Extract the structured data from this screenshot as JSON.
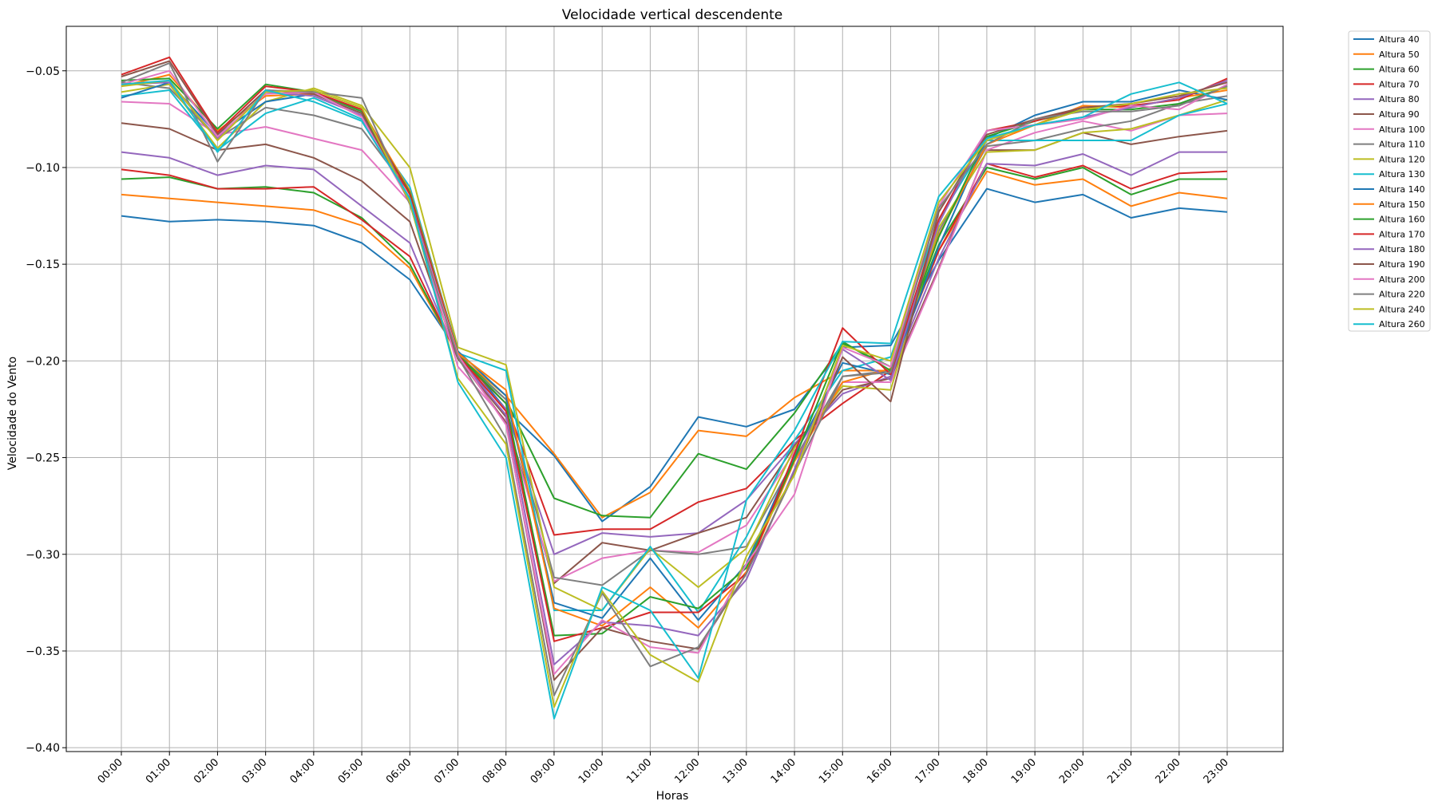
{
  "chart_data": {
    "type": "line",
    "title": "Velocidade vertical descendente",
    "xlabel": "Horas",
    "ylabel": "Velocidade do Vento",
    "ylim": [
      -0.402,
      -0.027
    ],
    "yticks": [
      -0.05,
      -0.1,
      -0.15,
      -0.2,
      -0.25,
      -0.3,
      -0.35,
      -0.4
    ],
    "ytick_labels": [
      "−0.05",
      "−0.10",
      "−0.15",
      "−0.20",
      "−0.25",
      "−0.30",
      "−0.35",
      "−0.40"
    ],
    "grid": true,
    "legend_position": "outside-top-right",
    "x": [
      "00:00",
      "01:00",
      "02:00",
      "03:00",
      "04:00",
      "05:00",
      "06:00",
      "07:00",
      "08:00",
      "09:00",
      "10:00",
      "11:00",
      "12:00",
      "13:00",
      "14:00",
      "15:00",
      "16:00",
      "17:00",
      "18:00",
      "19:00",
      "20:00",
      "21:00",
      "22:00",
      "23:00"
    ],
    "series": [
      {
        "name": "Altura 40",
        "color": "#1f77b4",
        "values": [
          -0.125,
          -0.128,
          -0.127,
          -0.128,
          -0.13,
          -0.139,
          -0.158,
          -0.195,
          -0.225,
          -0.249,
          -0.283,
          -0.265,
          -0.229,
          -0.234,
          -0.225,
          -0.193,
          -0.192,
          -0.148,
          -0.111,
          -0.118,
          -0.114,
          -0.126,
          -0.121,
          -0.123
        ]
      },
      {
        "name": "Altura 50",
        "color": "#ff7f0e",
        "values": [
          -0.114,
          -0.116,
          -0.118,
          -0.12,
          -0.122,
          -0.13,
          -0.152,
          -0.197,
          -0.218,
          -0.248,
          -0.281,
          -0.268,
          -0.236,
          -0.239,
          -0.219,
          -0.205,
          -0.205,
          -0.143,
          -0.102,
          -0.109,
          -0.106,
          -0.12,
          -0.113,
          -0.116
        ]
      },
      {
        "name": "Altura 60",
        "color": "#2ca02c",
        "values": [
          -0.106,
          -0.105,
          -0.111,
          -0.11,
          -0.113,
          -0.126,
          -0.15,
          -0.197,
          -0.22,
          -0.271,
          -0.28,
          -0.281,
          -0.248,
          -0.256,
          -0.227,
          -0.191,
          -0.203,
          -0.14,
          -0.1,
          -0.106,
          -0.1,
          -0.114,
          -0.106,
          -0.106
        ]
      },
      {
        "name": "Altura 70",
        "color": "#d62728",
        "values": [
          -0.101,
          -0.104,
          -0.111,
          -0.111,
          -0.11,
          -0.127,
          -0.146,
          -0.198,
          -0.222,
          -0.29,
          -0.287,
          -0.287,
          -0.273,
          -0.266,
          -0.241,
          -0.222,
          -0.205,
          -0.143,
          -0.098,
          -0.105,
          -0.099,
          -0.111,
          -0.103,
          -0.102
        ]
      },
      {
        "name": "Altura 80",
        "color": "#9467bd",
        "values": [
          -0.092,
          -0.095,
          -0.104,
          -0.099,
          -0.101,
          -0.12,
          -0.139,
          -0.199,
          -0.225,
          -0.3,
          -0.289,
          -0.291,
          -0.289,
          -0.272,
          -0.243,
          -0.217,
          -0.208,
          -0.147,
          -0.098,
          -0.099,
          -0.093,
          -0.104,
          -0.092,
          -0.092
        ]
      },
      {
        "name": "Altura 90",
        "color": "#8c564b",
        "values": [
          -0.077,
          -0.08,
          -0.091,
          -0.088,
          -0.095,
          -0.107,
          -0.128,
          -0.199,
          -0.229,
          -0.315,
          -0.294,
          -0.298,
          -0.289,
          -0.281,
          -0.244,
          -0.215,
          -0.209,
          -0.152,
          -0.091,
          -0.091,
          -0.082,
          -0.088,
          -0.084,
          -0.081
        ]
      },
      {
        "name": "Altura 100",
        "color": "#e377c2",
        "values": [
          -0.066,
          -0.067,
          -0.083,
          -0.079,
          -0.085,
          -0.091,
          -0.118,
          -0.203,
          -0.231,
          -0.314,
          -0.302,
          -0.298,
          -0.299,
          -0.285,
          -0.247,
          -0.211,
          -0.211,
          -0.153,
          -0.091,
          -0.082,
          -0.076,
          -0.081,
          -0.073,
          -0.072
        ]
      },
      {
        "name": "Altura 110",
        "color": "#7f7f7f",
        "values": [
          -0.056,
          -0.059,
          -0.085,
          -0.069,
          -0.073,
          -0.08,
          -0.113,
          -0.198,
          -0.22,
          -0.312,
          -0.316,
          -0.298,
          -0.3,
          -0.296,
          -0.251,
          -0.208,
          -0.205,
          -0.133,
          -0.089,
          -0.086,
          -0.08,
          -0.076,
          -0.067,
          -0.063
        ]
      },
      {
        "name": "Altura 120",
        "color": "#bcbd22",
        "values": [
          -0.061,
          -0.057,
          -0.09,
          -0.066,
          -0.059,
          -0.068,
          -0.1,
          -0.193,
          -0.202,
          -0.317,
          -0.329,
          -0.297,
          -0.317,
          -0.297,
          -0.245,
          -0.213,
          -0.215,
          -0.131,
          -0.092,
          -0.091,
          -0.082,
          -0.08,
          -0.073,
          -0.065
        ]
      },
      {
        "name": "Altura 130",
        "color": "#17becf",
        "values": [
          -0.063,
          -0.06,
          -0.091,
          -0.072,
          -0.064,
          -0.075,
          -0.11,
          -0.196,
          -0.205,
          -0.329,
          -0.329,
          -0.296,
          -0.33,
          -0.291,
          -0.241,
          -0.205,
          -0.198,
          -0.127,
          -0.086,
          -0.086,
          -0.086,
          -0.086,
          -0.073,
          -0.067
        ]
      },
      {
        "name": "Altura 140",
        "color": "#1f77b4",
        "values": [
          -0.064,
          -0.056,
          -0.083,
          -0.066,
          -0.062,
          -0.072,
          -0.112,
          -0.195,
          -0.218,
          -0.325,
          -0.333,
          -0.302,
          -0.334,
          -0.305,
          -0.249,
          -0.201,
          -0.207,
          -0.141,
          -0.085,
          -0.073,
          -0.066,
          -0.066,
          -0.06,
          -0.065
        ]
      },
      {
        "name": "Altura 150",
        "color": "#ff7f0e",
        "values": [
          -0.058,
          -0.052,
          -0.081,
          -0.063,
          -0.062,
          -0.07,
          -0.112,
          -0.196,
          -0.215,
          -0.328,
          -0.337,
          -0.317,
          -0.338,
          -0.309,
          -0.252,
          -0.211,
          -0.204,
          -0.135,
          -0.088,
          -0.078,
          -0.068,
          -0.069,
          -0.064,
          -0.06
        ]
      },
      {
        "name": "Altura 160",
        "color": "#2ca02c",
        "values": [
          -0.055,
          -0.054,
          -0.08,
          -0.057,
          -0.061,
          -0.071,
          -0.113,
          -0.197,
          -0.222,
          -0.342,
          -0.341,
          -0.322,
          -0.328,
          -0.307,
          -0.251,
          -0.19,
          -0.205,
          -0.136,
          -0.084,
          -0.076,
          -0.07,
          -0.07,
          -0.067,
          -0.058
        ]
      },
      {
        "name": "Altura 170",
        "color": "#d62728",
        "values": [
          -0.052,
          -0.043,
          -0.082,
          -0.058,
          -0.061,
          -0.07,
          -0.114,
          -0.197,
          -0.226,
          -0.345,
          -0.338,
          -0.33,
          -0.33,
          -0.31,
          -0.248,
          -0.183,
          -0.207,
          -0.127,
          -0.081,
          -0.076,
          -0.069,
          -0.068,
          -0.065,
          -0.054
        ]
      },
      {
        "name": "Altura 180",
        "color": "#9467bd",
        "values": [
          -0.057,
          -0.056,
          -0.085,
          -0.061,
          -0.063,
          -0.073,
          -0.116,
          -0.198,
          -0.228,
          -0.357,
          -0.335,
          -0.337,
          -0.342,
          -0.313,
          -0.256,
          -0.194,
          -0.21,
          -0.129,
          -0.081,
          -0.078,
          -0.074,
          -0.069,
          -0.064,
          -0.055
        ]
      },
      {
        "name": "Altura 190",
        "color": "#8c564b",
        "values": [
          -0.053,
          -0.045,
          -0.083,
          -0.06,
          -0.062,
          -0.072,
          -0.117,
          -0.198,
          -0.232,
          -0.365,
          -0.338,
          -0.345,
          -0.349,
          -0.31,
          -0.258,
          -0.198,
          -0.221,
          -0.123,
          -0.083,
          -0.075,
          -0.069,
          -0.067,
          -0.063,
          -0.056
        ]
      },
      {
        "name": "Altura 200",
        "color": "#e377c2",
        "values": [
          -0.057,
          -0.05,
          -0.084,
          -0.062,
          -0.061,
          -0.074,
          -0.118,
          -0.197,
          -0.233,
          -0.362,
          -0.334,
          -0.348,
          -0.351,
          -0.305,
          -0.269,
          -0.193,
          -0.203,
          -0.12,
          -0.081,
          -0.078,
          -0.075,
          -0.068,
          -0.07,
          -0.057
        ]
      },
      {
        "name": "Altura 220",
        "color": "#7f7f7f",
        "values": [
          -0.056,
          -0.046,
          -0.097,
          -0.06,
          -0.061,
          -0.064,
          -0.119,
          -0.198,
          -0.24,
          -0.373,
          -0.32,
          -0.358,
          -0.348,
          -0.31,
          -0.258,
          -0.208,
          -0.206,
          -0.121,
          -0.088,
          -0.075,
          -0.071,
          -0.071,
          -0.068,
          -0.058
        ]
      },
      {
        "name": "Altura 240",
        "color": "#bcbd22",
        "values": [
          -0.058,
          -0.055,
          -0.086,
          -0.061,
          -0.06,
          -0.069,
          -0.118,
          -0.209,
          -0.243,
          -0.379,
          -0.319,
          -0.352,
          -0.366,
          -0.301,
          -0.259,
          -0.192,
          -0.2,
          -0.118,
          -0.086,
          -0.078,
          -0.07,
          -0.067,
          -0.062,
          -0.059
        ]
      },
      {
        "name": "Altura 260",
        "color": "#17becf",
        "values": [
          -0.057,
          -0.055,
          -0.092,
          -0.06,
          -0.066,
          -0.076,
          -0.116,
          -0.211,
          -0.25,
          -0.385,
          -0.317,
          -0.329,
          -0.364,
          -0.272,
          -0.236,
          -0.19,
          -0.191,
          -0.115,
          -0.085,
          -0.078,
          -0.074,
          -0.062,
          -0.056,
          -0.067
        ]
      }
    ]
  }
}
